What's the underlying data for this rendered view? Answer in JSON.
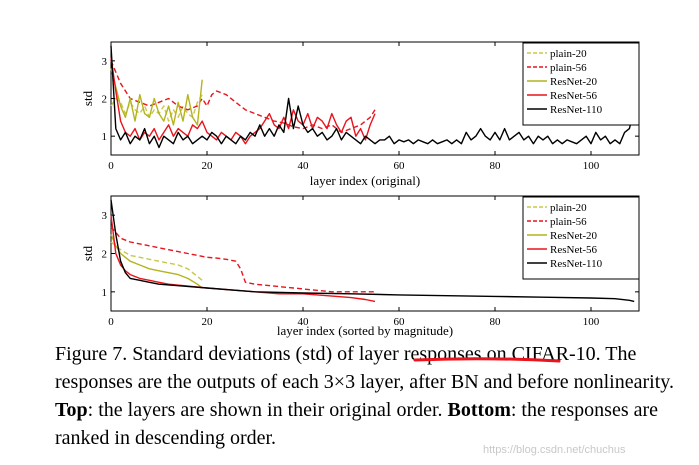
{
  "chart_data": [
    {
      "type": "line",
      "title": "",
      "xlabel": "layer index (original)",
      "ylabel": "std",
      "xlim": [
        0,
        110
      ],
      "ylim": [
        0.5,
        3.5
      ],
      "xticks": [
        0,
        20,
        40,
        60,
        80,
        100
      ],
      "yticks": [
        1,
        2,
        3
      ],
      "legend_position": "top-right",
      "series": [
        {
          "name": "plain-20",
          "color": "#c8c84a",
          "dash": "dashed",
          "x": [
            0,
            1,
            2,
            3,
            4,
            5,
            6,
            7,
            8,
            9,
            10,
            11,
            12,
            13,
            14,
            15,
            16,
            17,
            18,
            19
          ],
          "y": [
            1.8,
            2.0,
            1.9,
            1.6,
            1.9,
            1.7,
            1.6,
            1.8,
            1.5,
            1.7,
            1.6,
            1.8,
            1.4,
            1.7,
            1.5,
            1.8,
            1.6,
            1.5,
            1.9,
            2.1
          ]
        },
        {
          "name": "plain-56",
          "color": "#e8141e",
          "dash": "dashed",
          "x": [
            0,
            2,
            4,
            6,
            8,
            10,
            12,
            14,
            16,
            18,
            19,
            20,
            21,
            22,
            24,
            26,
            28,
            30,
            32,
            34,
            36,
            38,
            40,
            42,
            44,
            46,
            48,
            50,
            52,
            54,
            55
          ],
          "y": [
            3.0,
            2.4,
            2.0,
            1.9,
            1.8,
            1.9,
            2.0,
            1.8,
            1.7,
            1.8,
            2.0,
            1.8,
            2.1,
            2.2,
            2.1,
            1.9,
            1.7,
            1.6,
            1.5,
            1.4,
            1.35,
            1.25,
            1.2,
            1.3,
            1.2,
            1.3,
            1.1,
            1.2,
            1.3,
            1.5,
            1.7
          ]
        },
        {
          "name": "ResNet-20",
          "color": "#b4b41e",
          "dash": "solid",
          "x": [
            0,
            1,
            2,
            3,
            4,
            5,
            6,
            7,
            8,
            9,
            10,
            11,
            12,
            13,
            14,
            15,
            16,
            17,
            18,
            19
          ],
          "y": [
            2.8,
            2.3,
            1.8,
            1.5,
            2.0,
            1.4,
            2.1,
            1.6,
            1.5,
            2.0,
            1.6,
            1.4,
            1.8,
            1.3,
            1.9,
            1.4,
            2.1,
            1.5,
            1.3,
            2.5
          ]
        },
        {
          "name": "ResNet-56",
          "color": "#e8141e",
          "dash": "solid",
          "x": [
            0,
            1,
            2,
            3,
            4,
            5,
            6,
            7,
            8,
            9,
            10,
            11,
            12,
            13,
            14,
            15,
            16,
            17,
            18,
            19,
            20,
            21,
            22,
            23,
            24,
            25,
            26,
            27,
            28,
            29,
            30,
            31,
            32,
            33,
            34,
            35,
            36,
            37,
            38,
            39,
            40,
            41,
            42,
            43,
            44,
            45,
            46,
            47,
            48,
            49,
            50,
            51,
            52,
            53,
            54,
            55
          ],
          "y": [
            3.1,
            2.2,
            1.4,
            1.1,
            1.0,
            1.2,
            0.9,
            1.1,
            1.0,
            1.2,
            0.9,
            1.1,
            1.3,
            1.0,
            1.2,
            1.1,
            1.0,
            1.3,
            1.2,
            1.4,
            1.1,
            1.0,
            0.9,
            1.1,
            1.0,
            0.9,
            1.1,
            1.0,
            0.8,
            1.0,
            1.1,
            1.2,
            1.4,
            1.6,
            1.3,
            1.2,
            1.5,
            1.2,
            1.7,
            1.4,
            1.3,
            1.6,
            1.2,
            1.5,
            1.4,
            1.2,
            1.6,
            1.3,
            1.1,
            1.4,
            1.5,
            1.0,
            1.2,
            0.9,
            1.3,
            1.6
          ]
        },
        {
          "name": "ResNet-110",
          "color": "#000000",
          "dash": "solid",
          "x": [
            0,
            1,
            2,
            3,
            4,
            5,
            6,
            7,
            8,
            9,
            10,
            11,
            12,
            13,
            14,
            15,
            16,
            17,
            18,
            19,
            20,
            21,
            22,
            23,
            24,
            25,
            26,
            27,
            28,
            29,
            30,
            31,
            32,
            33,
            34,
            35,
            36,
            37,
            38,
            39,
            40,
            41,
            42,
            43,
            44,
            45,
            46,
            47,
            48,
            49,
            50,
            51,
            52,
            53,
            54,
            55,
            56,
            57,
            58,
            59,
            60,
            61,
            62,
            63,
            64,
            65,
            66,
            67,
            68,
            69,
            70,
            71,
            72,
            73,
            74,
            75,
            76,
            77,
            78,
            79,
            80,
            81,
            82,
            83,
            84,
            85,
            86,
            87,
            88,
            89,
            90,
            91,
            92,
            93,
            94,
            95,
            96,
            97,
            98,
            99,
            100,
            101,
            102,
            103,
            104,
            105,
            106,
            107,
            108,
            109
          ],
          "y": [
            3.4,
            1.2,
            0.9,
            1.1,
            0.8,
            1.0,
            0.9,
            1.2,
            0.8,
            1.0,
            0.7,
            1.0,
            0.9,
            0.8,
            1.1,
            0.9,
            1.0,
            0.8,
            0.9,
            1.0,
            0.9,
            1.1,
            1.0,
            0.8,
            1.0,
            0.9,
            0.8,
            1.0,
            0.9,
            1.1,
            1.0,
            1.3,
            1.0,
            1.2,
            1.0,
            1.3,
            1.1,
            2.0,
            1.2,
            1.8,
            1.3,
            1.1,
            1.2,
            1.0,
            1.1,
            0.9,
            1.0,
            1.2,
            0.9,
            1.1,
            1.0,
            0.9,
            0.8,
            1.0,
            0.9,
            0.8,
            0.9,
            0.9,
            1.0,
            0.8,
            0.9,
            0.85,
            0.9,
            0.8,
            0.9,
            0.85,
            0.8,
            0.9,
            0.8,
            0.85,
            0.9,
            0.8,
            0.9,
            0.8,
            1.1,
            0.9,
            1.0,
            1.2,
            1.0,
            0.9,
            1.1,
            0.9,
            1.2,
            0.9,
            1.0,
            1.1,
            0.9,
            1.0,
            0.8,
            1.0,
            0.9,
            1.0,
            0.8,
            0.9,
            0.8,
            0.9,
            0.85,
            0.8,
            0.9,
            1.0,
            0.8,
            1.1,
            0.9,
            1.0,
            0.8,
            0.9,
            0.8,
            1.1,
            1.2,
            1.7
          ]
        }
      ]
    },
    {
      "type": "line",
      "title": "",
      "xlabel": "layer index (sorted by magnitude)",
      "ylabel": "std",
      "xlim": [
        0,
        110
      ],
      "ylim": [
        0.5,
        3.5
      ],
      "xticks": [
        0,
        20,
        40,
        60,
        80,
        100
      ],
      "yticks": [
        1,
        2,
        3
      ],
      "legend_position": "top-right",
      "series": [
        {
          "name": "plain-20",
          "color": "#c8c84a",
          "dash": "dashed",
          "x": [
            0,
            2,
            4,
            6,
            8,
            10,
            12,
            14,
            16,
            18,
            19
          ],
          "y": [
            2.3,
            2.1,
            1.95,
            1.9,
            1.85,
            1.8,
            1.75,
            1.7,
            1.6,
            1.4,
            1.3
          ]
        },
        {
          "name": "plain-56",
          "color": "#e8141e",
          "dash": "dashed",
          "x": [
            0,
            2,
            4,
            6,
            8,
            10,
            12,
            14,
            16,
            18,
            20,
            22,
            24,
            26,
            27,
            28,
            30,
            34,
            38,
            42,
            46,
            50,
            55
          ],
          "y": [
            2.7,
            2.4,
            2.3,
            2.25,
            2.2,
            2.15,
            2.1,
            2.05,
            2.0,
            1.95,
            1.9,
            1.88,
            1.85,
            1.8,
            1.6,
            1.25,
            1.2,
            1.15,
            1.1,
            1.05,
            1.0,
            1.0,
            1.0
          ]
        },
        {
          "name": "ResNet-20",
          "color": "#b4b41e",
          "dash": "solid",
          "x": [
            0,
            1,
            2,
            4,
            6,
            8,
            10,
            12,
            14,
            16,
            18,
            19
          ],
          "y": [
            2.5,
            2.2,
            2.0,
            1.8,
            1.7,
            1.6,
            1.55,
            1.5,
            1.45,
            1.35,
            1.2,
            1.1
          ]
        },
        {
          "name": "ResNet-56",
          "color": "#e8141e",
          "dash": "solid",
          "x": [
            0,
            1,
            2,
            3,
            4,
            6,
            8,
            10,
            12,
            16,
            20,
            25,
            30,
            35,
            40,
            45,
            50,
            53,
            55
          ],
          "y": [
            3.0,
            2.0,
            1.7,
            1.55,
            1.45,
            1.35,
            1.3,
            1.25,
            1.2,
            1.15,
            1.1,
            1.05,
            1.0,
            0.95,
            0.95,
            0.9,
            0.85,
            0.8,
            0.75
          ]
        },
        {
          "name": "ResNet-110",
          "color": "#000000",
          "dash": "solid",
          "x": [
            0,
            1,
            2,
            3,
            4,
            6,
            8,
            10,
            15,
            20,
            30,
            40,
            50,
            60,
            70,
            80,
            90,
            100,
            105,
            108,
            109
          ],
          "y": [
            3.4,
            2.5,
            1.8,
            1.5,
            1.35,
            1.3,
            1.25,
            1.2,
            1.15,
            1.1,
            1.0,
            0.97,
            0.95,
            0.92,
            0.9,
            0.88,
            0.86,
            0.84,
            0.82,
            0.78,
            0.75
          ]
        }
      ]
    }
  ],
  "caption": {
    "fig_label": "Figure 7.",
    "part1": " Standard deviations (std) of ",
    "highlight": "layer responses",
    "part2": " on CIFAR-10. The responses are the outputs of each 3×3 layer, after BN and before nonlinearity. ",
    "top_label": "Top",
    "part3": ": the layers are shown in their original order. ",
    "bottom_label": "Bottom",
    "part4": ": the responses are ranked in descending order."
  },
  "watermark": "https://blog.csdn.net/chuchus"
}
